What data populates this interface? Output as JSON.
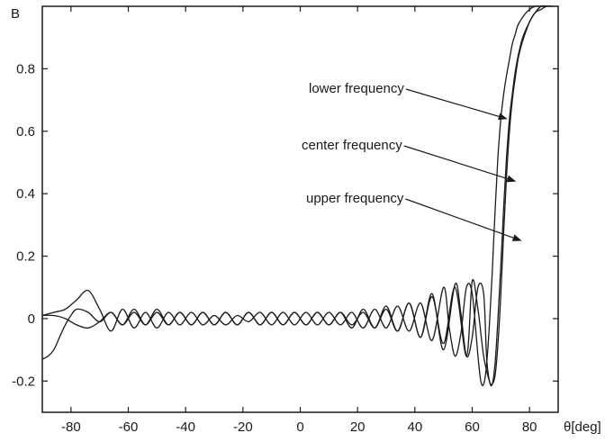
{
  "chart_data": {
    "type": "line",
    "title": "",
    "xlabel": "θ[deg]",
    "ylabel": "B",
    "xlim": [
      -90,
      90
    ],
    "ylim": [
      -0.3,
      1.0
    ],
    "xticks": [
      -80,
      -60,
      -40,
      -20,
      0,
      20,
      40,
      60,
      80
    ],
    "xtick_labels": [
      "-80",
      "-60",
      "-40",
      "-20",
      "0",
      "20",
      "40",
      "60",
      "80"
    ],
    "yticks": [
      -0.2,
      0,
      0.2,
      0.4,
      0.6,
      0.8
    ],
    "ytick_labels": [
      "-0.2",
      "0",
      "0.2",
      "0.4",
      "0.6",
      "0.8"
    ],
    "grid": false,
    "legend": "none",
    "line_color": "#1a1a1a",
    "series": [
      {
        "x": [
          -90,
          -86,
          -82,
          -78,
          -74,
          -70,
          -66,
          -62,
          -58,
          -54,
          -50,
          -46,
          -42,
          -38,
          -34,
          -30,
          -26,
          -22,
          -18,
          -14,
          -10,
          -6,
          -2,
          2,
          6,
          10,
          14,
          18,
          22,
          26,
          30,
          34,
          38,
          42,
          46,
          50,
          52,
          54,
          56,
          58,
          60,
          62,
          63,
          64,
          65,
          66,
          67,
          68,
          69,
          70,
          71,
          72,
          73,
          74,
          75,
          76,
          78,
          80,
          82,
          84,
          86
        ],
        "y": [
          0.01,
          0.02,
          0.03,
          0.06,
          0.09,
          0.03,
          -0.04,
          0.03,
          -0.03,
          0.02,
          -0.03,
          0.02,
          -0.02,
          0.02,
          -0.02,
          0.01,
          -0.02,
          0.01,
          -0.01,
          0.02,
          -0.02,
          0.02,
          -0.02,
          0.02,
          -0.02,
          0.02,
          -0.02,
          0.02,
          -0.03,
          0.03,
          -0.03,
          0.04,
          -0.04,
          0.05,
          -0.07,
          0.1,
          -0.03,
          -0.12,
          -0.05,
          0.1,
          0.08,
          -0.12,
          -0.2,
          -0.21,
          -0.15,
          -0.02,
          0.15,
          0.35,
          0.52,
          0.64,
          0.72,
          0.78,
          0.83,
          0.88,
          0.91,
          0.94,
          0.97,
          0.99,
          1.0,
          1.0,
          1.0
        ]
      },
      {
        "x": [
          -90,
          -86,
          -82,
          -78,
          -74,
          -70,
          -66,
          -62,
          -58,
          -54,
          -50,
          -46,
          -42,
          -38,
          -34,
          -30,
          -26,
          -22,
          -18,
          -14,
          -10,
          -6,
          -2,
          2,
          6,
          10,
          14,
          18,
          22,
          26,
          30,
          34,
          38,
          42,
          46,
          50,
          54,
          56,
          58,
          60,
          62,
          64,
          65,
          66,
          67,
          68,
          69,
          70,
          71,
          72,
          73,
          74,
          75,
          76,
          77,
          78,
          80,
          82,
          84,
          86,
          88
        ],
        "y": [
          0.01,
          0.01,
          0.0,
          -0.02,
          -0.03,
          -0.01,
          0.02,
          -0.02,
          0.03,
          -0.02,
          0.03,
          -0.02,
          0.02,
          -0.02,
          0.02,
          -0.02,
          0.02,
          -0.02,
          0.02,
          -0.02,
          0.02,
          -0.02,
          0.02,
          -0.02,
          0.02,
          -0.02,
          0.02,
          -0.02,
          0.02,
          -0.03,
          0.03,
          -0.04,
          0.05,
          -0.06,
          0.08,
          -0.1,
          0.11,
          0.02,
          -0.12,
          -0.06,
          0.1,
          0.08,
          -0.12,
          -0.2,
          -0.21,
          -0.14,
          0.0,
          0.17,
          0.36,
          0.52,
          0.64,
          0.72,
          0.79,
          0.84,
          0.88,
          0.91,
          0.95,
          0.98,
          1.0,
          1.0,
          1.0
        ]
      },
      {
        "x": [
          -90,
          -88,
          -86,
          -84,
          -82,
          -80,
          -78,
          -74,
          -70,
          -66,
          -62,
          -58,
          -54,
          -50,
          -46,
          -42,
          -38,
          -34,
          -30,
          -26,
          -22,
          -18,
          -14,
          -10,
          -6,
          -2,
          2,
          6,
          10,
          14,
          18,
          22,
          26,
          30,
          34,
          38,
          42,
          46,
          50,
          54,
          58,
          60,
          62,
          64,
          66,
          67,
          68,
          69,
          70,
          71,
          72,
          73,
          74,
          75,
          76,
          77,
          78,
          80,
          82,
          84,
          86,
          88
        ],
        "y": [
          -0.13,
          -0.12,
          -0.1,
          -0.06,
          -0.02,
          0.01,
          0.03,
          0.02,
          -0.01,
          0.02,
          -0.02,
          0.02,
          -0.02,
          0.02,
          -0.02,
          0.02,
          -0.02,
          0.02,
          -0.02,
          0.02,
          -0.02,
          0.02,
          -0.02,
          0.02,
          -0.02,
          0.02,
          -0.02,
          0.02,
          -0.02,
          0.02,
          -0.03,
          0.03,
          -0.03,
          0.04,
          -0.04,
          0.05,
          -0.06,
          0.07,
          -0.08,
          0.1,
          -0.12,
          0.12,
          0.03,
          -0.12,
          -0.2,
          -0.21,
          -0.18,
          -0.08,
          0.08,
          0.28,
          0.46,
          0.6,
          0.7,
          0.77,
          0.83,
          0.87,
          0.9,
          0.95,
          0.98,
          0.99,
          1.0,
          1.0
        ]
      }
    ],
    "annotations": [
      {
        "text": "lower frequency",
        "arrow_to": [
          72,
          0.64
        ]
      },
      {
        "text": "center frequency",
        "arrow_to": [
          75,
          0.44
        ]
      },
      {
        "text": "upper frequency",
        "arrow_to": [
          77,
          0.25
        ]
      }
    ]
  }
}
